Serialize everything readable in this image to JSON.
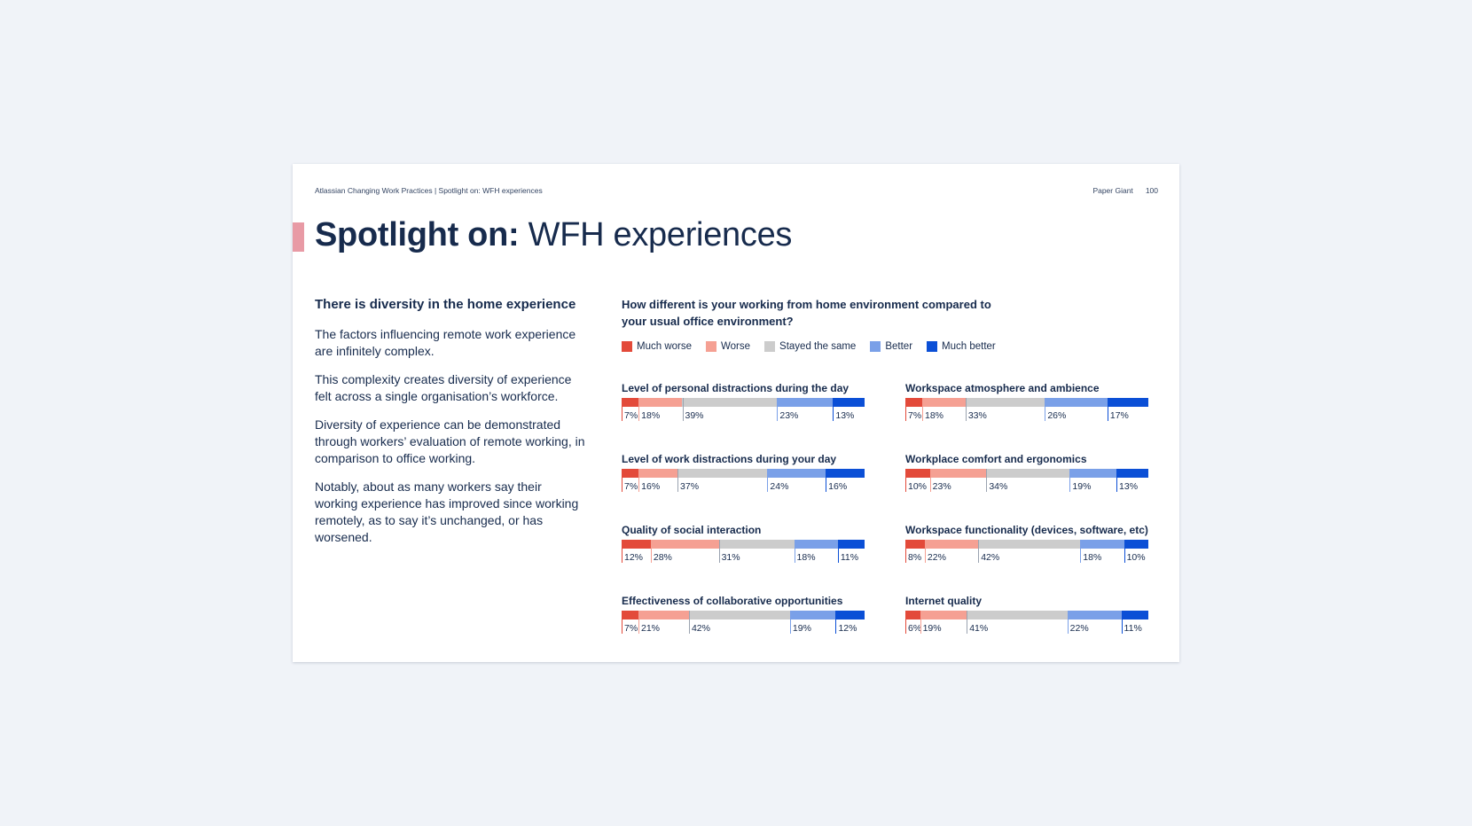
{
  "header": {
    "left": "Atlassian Changing Work Practices | Spotlight on: WFH experiences",
    "brand": "Paper Giant",
    "page_number": "100"
  },
  "title": {
    "bold": "Spotlight on:",
    "regular": "WFH experiences"
  },
  "colors": {
    "accent": "#e89aa5",
    "much_worse": "#e34a3a",
    "worse": "#f5a093",
    "same": "#cccccc",
    "better": "#7aa0e8",
    "much_better": "#0b4fd6"
  },
  "left": {
    "heading": "There is diversity in the home experience",
    "paragraphs": [
      "The factors influencing remote work experience are infinitely complex.",
      "This complexity creates diversity of experience felt across a single organisation’s workforce.",
      "Diversity of experience can be demonstrated through workers’ evaluation of remote working, in comparison to office working.",
      "Notably, about as many workers say their working experience has improved since working remotely, as to say it’s unchanged, or has worsened."
    ]
  },
  "question": "How different is your working from home environment compared to your usual office environment?",
  "legend": [
    "Much worse",
    "Worse",
    "Stayed the same",
    "Better",
    "Much better"
  ],
  "chart_data": {
    "type": "bar",
    "stacked": true,
    "orientation": "horizontal",
    "unit": "%",
    "categories": [
      "Much worse",
      "Worse",
      "Stayed the same",
      "Better",
      "Much better"
    ],
    "charts": [
      {
        "title": "Level of personal distractions during the day",
        "values": [
          7,
          18,
          39,
          23,
          13
        ]
      },
      {
        "title": "Workspace atmosphere and ambience",
        "values": [
          7,
          18,
          33,
          26,
          17
        ]
      },
      {
        "title": "Level of work distractions during your day",
        "values": [
          7,
          16,
          37,
          24,
          16
        ]
      },
      {
        "title": "Workplace comfort and ergonomics",
        "values": [
          10,
          23,
          34,
          19,
          13
        ]
      },
      {
        "title": "Quality of social interaction",
        "values": [
          12,
          28,
          31,
          18,
          11
        ]
      },
      {
        "title": "Workspace functionality (devices, software, etc)",
        "values": [
          8,
          22,
          42,
          18,
          10
        ]
      },
      {
        "title": "Effectiveness of collaborative opportunities",
        "values": [
          7,
          21,
          42,
          19,
          12
        ]
      },
      {
        "title": "Internet quality",
        "values": [
          6,
          19,
          41,
          22,
          11
        ]
      }
    ]
  }
}
